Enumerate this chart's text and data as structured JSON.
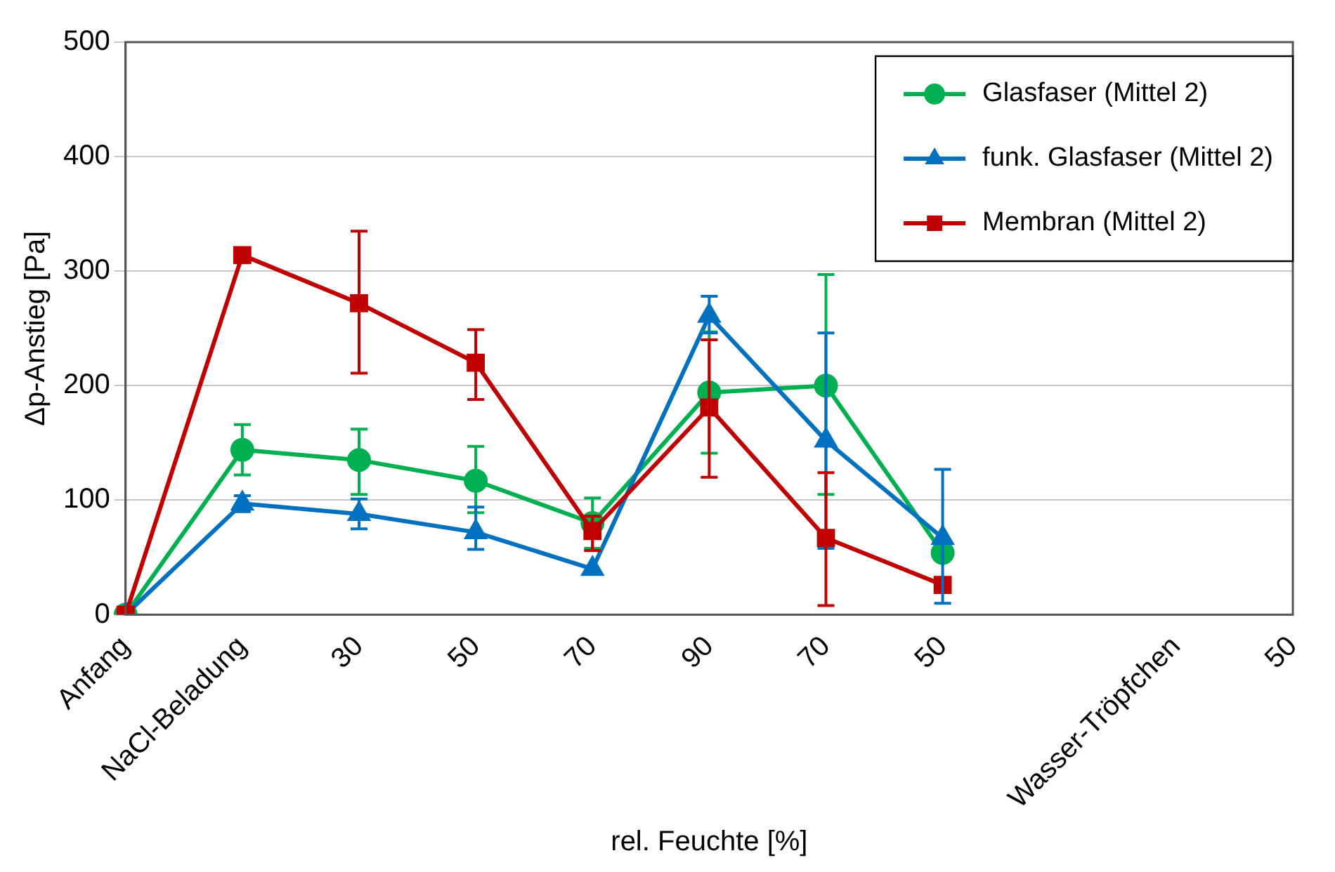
{
  "chart_data": {
    "type": "line",
    "xlabel": "rel. Feuchte [%]",
    "ylabel": "Δp-Anstieg [Pa]",
    "categories": [
      "Anfang",
      "NaCl-Beladung",
      "30",
      "50",
      "70",
      "90",
      "70",
      "50",
      null,
      "Wasser-Tröpfchen",
      "50"
    ],
    "ylim": [
      0,
      500
    ],
    "yticks": [
      0,
      100,
      200,
      300,
      400,
      500
    ],
    "grid": "y",
    "legend": "top right",
    "line_style": "solid",
    "series": [
      {
        "name": "Glasfaser (Mittel 2)",
        "color": "#00b050",
        "marker": "circle",
        "values": [
          0,
          144,
          135,
          117,
          80,
          194,
          200,
          54,
          null,
          null,
          null
        ],
        "errors": [
          null,
          [
            122,
            166
          ],
          [
            105,
            162
          ],
          [
            89,
            147
          ],
          [
            58,
            102
          ],
          [
            141,
            247
          ],
          [
            105,
            297
          ],
          null,
          null,
          null,
          null
        ]
      },
      {
        "name": "funk. Glasfaser (Mittel 2)",
        "color": "#0070c0",
        "marker": "triangle",
        "values": [
          0,
          97,
          88,
          72,
          40,
          261,
          152,
          67,
          null,
          null,
          null
        ],
        "errors": [
          null,
          [
            90,
            104
          ],
          [
            75,
            101
          ],
          [
            57,
            94
          ],
          null,
          [
            246,
            278
          ],
          [
            58,
            246
          ],
          [
            10,
            127
          ],
          null,
          null,
          null
        ]
      },
      {
        "name": "Membran (Mittel 2)",
        "color": "#c00000",
        "marker": "square",
        "values": [
          0,
          314,
          272,
          220,
          73,
          181,
          67,
          26,
          null,
          null,
          null
        ],
        "errors": [
          null,
          null,
          [
            211,
            335
          ],
          [
            188,
            249
          ],
          [
            56,
            86
          ],
          [
            120,
            240
          ],
          [
            8,
            124
          ],
          null,
          null,
          null,
          null
        ]
      }
    ]
  }
}
